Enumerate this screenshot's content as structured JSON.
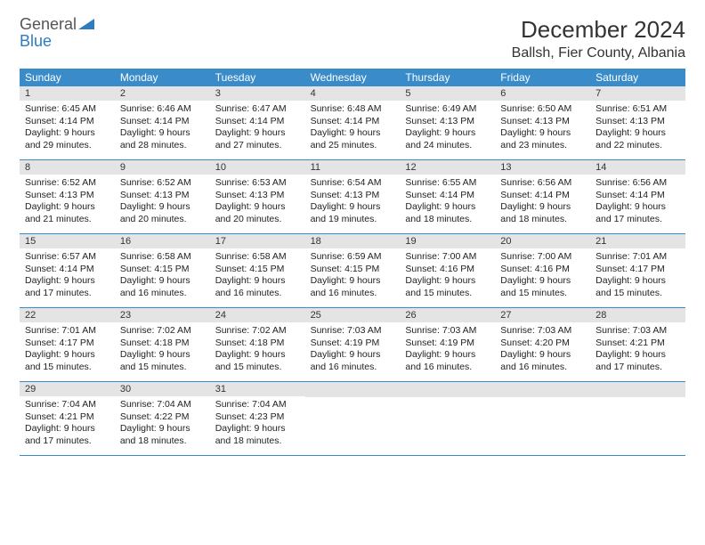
{
  "logo": {
    "part1": "General",
    "part2": "Blue"
  },
  "title": "December 2024",
  "location": "Ballsh, Fier County, Albania",
  "colors": {
    "header_bg": "#3a8bc9",
    "header_text": "#ffffff",
    "daynum_bg": "#e4e4e4",
    "row_border": "#3a8bc9",
    "logo_gray": "#555555",
    "logo_blue": "#2e7cc0"
  },
  "day_headers": [
    "Sunday",
    "Monday",
    "Tuesday",
    "Wednesday",
    "Thursday",
    "Friday",
    "Saturday"
  ],
  "weeks": [
    [
      {
        "n": "1",
        "sr": "Sunrise: 6:45 AM",
        "ss": "Sunset: 4:14 PM",
        "dl": "Daylight: 9 hours and 29 minutes."
      },
      {
        "n": "2",
        "sr": "Sunrise: 6:46 AM",
        "ss": "Sunset: 4:14 PM",
        "dl": "Daylight: 9 hours and 28 minutes."
      },
      {
        "n": "3",
        "sr": "Sunrise: 6:47 AM",
        "ss": "Sunset: 4:14 PM",
        "dl": "Daylight: 9 hours and 27 minutes."
      },
      {
        "n": "4",
        "sr": "Sunrise: 6:48 AM",
        "ss": "Sunset: 4:14 PM",
        "dl": "Daylight: 9 hours and 25 minutes."
      },
      {
        "n": "5",
        "sr": "Sunrise: 6:49 AM",
        "ss": "Sunset: 4:13 PM",
        "dl": "Daylight: 9 hours and 24 minutes."
      },
      {
        "n": "6",
        "sr": "Sunrise: 6:50 AM",
        "ss": "Sunset: 4:13 PM",
        "dl": "Daylight: 9 hours and 23 minutes."
      },
      {
        "n": "7",
        "sr": "Sunrise: 6:51 AM",
        "ss": "Sunset: 4:13 PM",
        "dl": "Daylight: 9 hours and 22 minutes."
      }
    ],
    [
      {
        "n": "8",
        "sr": "Sunrise: 6:52 AM",
        "ss": "Sunset: 4:13 PM",
        "dl": "Daylight: 9 hours and 21 minutes."
      },
      {
        "n": "9",
        "sr": "Sunrise: 6:52 AM",
        "ss": "Sunset: 4:13 PM",
        "dl": "Daylight: 9 hours and 20 minutes."
      },
      {
        "n": "10",
        "sr": "Sunrise: 6:53 AM",
        "ss": "Sunset: 4:13 PM",
        "dl": "Daylight: 9 hours and 20 minutes."
      },
      {
        "n": "11",
        "sr": "Sunrise: 6:54 AM",
        "ss": "Sunset: 4:13 PM",
        "dl": "Daylight: 9 hours and 19 minutes."
      },
      {
        "n": "12",
        "sr": "Sunrise: 6:55 AM",
        "ss": "Sunset: 4:14 PM",
        "dl": "Daylight: 9 hours and 18 minutes."
      },
      {
        "n": "13",
        "sr": "Sunrise: 6:56 AM",
        "ss": "Sunset: 4:14 PM",
        "dl": "Daylight: 9 hours and 18 minutes."
      },
      {
        "n": "14",
        "sr": "Sunrise: 6:56 AM",
        "ss": "Sunset: 4:14 PM",
        "dl": "Daylight: 9 hours and 17 minutes."
      }
    ],
    [
      {
        "n": "15",
        "sr": "Sunrise: 6:57 AM",
        "ss": "Sunset: 4:14 PM",
        "dl": "Daylight: 9 hours and 17 minutes."
      },
      {
        "n": "16",
        "sr": "Sunrise: 6:58 AM",
        "ss": "Sunset: 4:15 PM",
        "dl": "Daylight: 9 hours and 16 minutes."
      },
      {
        "n": "17",
        "sr": "Sunrise: 6:58 AM",
        "ss": "Sunset: 4:15 PM",
        "dl": "Daylight: 9 hours and 16 minutes."
      },
      {
        "n": "18",
        "sr": "Sunrise: 6:59 AM",
        "ss": "Sunset: 4:15 PM",
        "dl": "Daylight: 9 hours and 16 minutes."
      },
      {
        "n": "19",
        "sr": "Sunrise: 7:00 AM",
        "ss": "Sunset: 4:16 PM",
        "dl": "Daylight: 9 hours and 15 minutes."
      },
      {
        "n": "20",
        "sr": "Sunrise: 7:00 AM",
        "ss": "Sunset: 4:16 PM",
        "dl": "Daylight: 9 hours and 15 minutes."
      },
      {
        "n": "21",
        "sr": "Sunrise: 7:01 AM",
        "ss": "Sunset: 4:17 PM",
        "dl": "Daylight: 9 hours and 15 minutes."
      }
    ],
    [
      {
        "n": "22",
        "sr": "Sunrise: 7:01 AM",
        "ss": "Sunset: 4:17 PM",
        "dl": "Daylight: 9 hours and 15 minutes."
      },
      {
        "n": "23",
        "sr": "Sunrise: 7:02 AM",
        "ss": "Sunset: 4:18 PM",
        "dl": "Daylight: 9 hours and 15 minutes."
      },
      {
        "n": "24",
        "sr": "Sunrise: 7:02 AM",
        "ss": "Sunset: 4:18 PM",
        "dl": "Daylight: 9 hours and 15 minutes."
      },
      {
        "n": "25",
        "sr": "Sunrise: 7:03 AM",
        "ss": "Sunset: 4:19 PM",
        "dl": "Daylight: 9 hours and 16 minutes."
      },
      {
        "n": "26",
        "sr": "Sunrise: 7:03 AM",
        "ss": "Sunset: 4:19 PM",
        "dl": "Daylight: 9 hours and 16 minutes."
      },
      {
        "n": "27",
        "sr": "Sunrise: 7:03 AM",
        "ss": "Sunset: 4:20 PM",
        "dl": "Daylight: 9 hours and 16 minutes."
      },
      {
        "n": "28",
        "sr": "Sunrise: 7:03 AM",
        "ss": "Sunset: 4:21 PM",
        "dl": "Daylight: 9 hours and 17 minutes."
      }
    ],
    [
      {
        "n": "29",
        "sr": "Sunrise: 7:04 AM",
        "ss": "Sunset: 4:21 PM",
        "dl": "Daylight: 9 hours and 17 minutes."
      },
      {
        "n": "30",
        "sr": "Sunrise: 7:04 AM",
        "ss": "Sunset: 4:22 PM",
        "dl": "Daylight: 9 hours and 18 minutes."
      },
      {
        "n": "31",
        "sr": "Sunrise: 7:04 AM",
        "ss": "Sunset: 4:23 PM",
        "dl": "Daylight: 9 hours and 18 minutes."
      },
      {
        "empty": true
      },
      {
        "empty": true
      },
      {
        "empty": true
      },
      {
        "empty": true
      }
    ]
  ]
}
